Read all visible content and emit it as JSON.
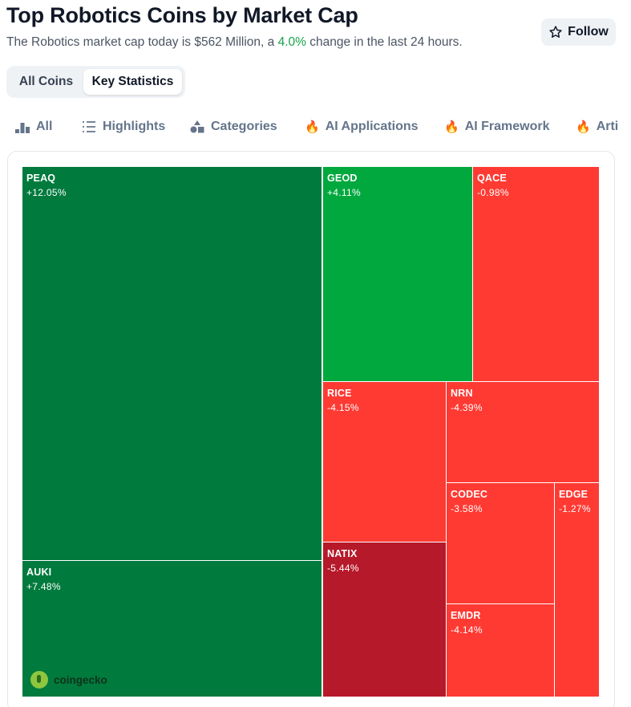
{
  "header": {
    "title": "Top Robotics Coins by Market Cap",
    "subtitle_prefix": "The Robotics market cap today is $562 Million, a ",
    "subtitle_change": "4.0%",
    "subtitle_suffix": " change in the last 24 hours.",
    "follow_label": "Follow"
  },
  "segment": {
    "all_coins": "All Coins",
    "key_statistics": "Key Statistics",
    "active": "Key Statistics"
  },
  "tabs": [
    {
      "label": "All",
      "icon": "bar-chart-icon"
    },
    {
      "label": "Highlights",
      "icon": "list-icon"
    },
    {
      "label": "Categories",
      "icon": "shapes-icon"
    },
    {
      "label": "AI Applications",
      "icon": "fire-icon"
    },
    {
      "label": "AI Framework",
      "icon": "fire-icon"
    },
    {
      "label": "Arti",
      "icon": "fire-icon"
    }
  ],
  "treemap": {
    "cells": [
      {
        "symbol": "PEAQ",
        "change": "+12.05%",
        "color": "#007a3d"
      },
      {
        "symbol": "AUKI",
        "change": "+7.48%",
        "color": "#007a3d"
      },
      {
        "symbol": "GEOD",
        "change": "+4.11%",
        "color": "#00a83e"
      },
      {
        "symbol": "QACE",
        "change": "-0.98%",
        "color": "#fe3a33"
      },
      {
        "symbol": "RICE",
        "change": "-4.15%",
        "color": "#fe3a33"
      },
      {
        "symbol": "NRN",
        "change": "-4.39%",
        "color": "#fe3a33"
      },
      {
        "symbol": "NATIX",
        "change": "-5.44%",
        "color": "#b6192a"
      },
      {
        "symbol": "CODEC",
        "change": "-3.58%",
        "color": "#fe3a33"
      },
      {
        "symbol": "EDGE",
        "change": "-1.27%",
        "color": "#fe3a33"
      },
      {
        "symbol": "EMDR",
        "change": "-4.14%",
        "color": "#fe3a33"
      }
    ],
    "watermark": "coingecko"
  },
  "colors": {
    "positive": "#16a34a",
    "dark_green": "#007a3d",
    "green": "#00a83e",
    "red": "#fe3a33",
    "dark_red": "#b6192a"
  }
}
